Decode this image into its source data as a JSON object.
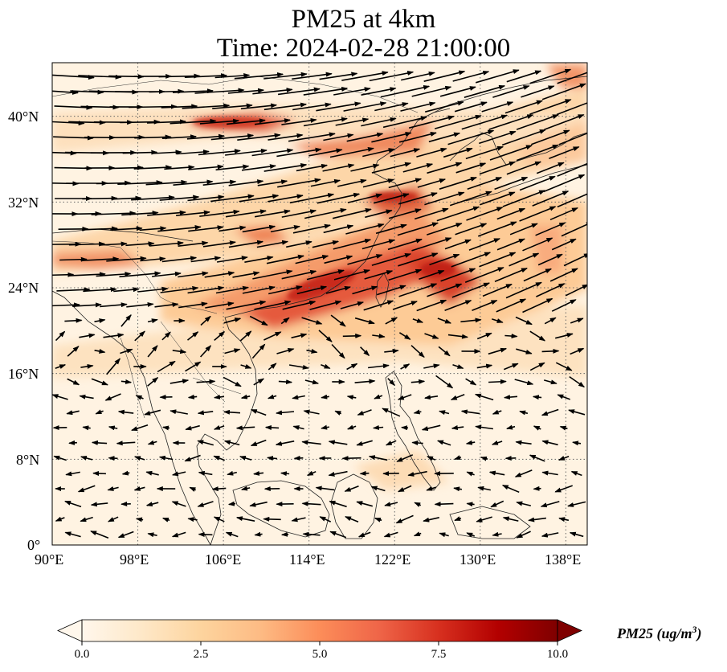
{
  "title": {
    "line1": "PM25 at 4km",
    "line2": "Time: 2024-02-28 21:00:00"
  },
  "map": {
    "region": "East and Southeast Asia",
    "lon_range": [
      90,
      140
    ],
    "lat_range": [
      0,
      45
    ],
    "x_ticks": [
      "90°E",
      "98°E",
      "106°E",
      "114°E",
      "122°E",
      "130°E",
      "138°E"
    ],
    "y_ticks": [
      "0°",
      "8°N",
      "16°N",
      "24°N",
      "32°N",
      "40°N"
    ],
    "grid": "dotted",
    "wind_vectors": "shown"
  },
  "colorbar": {
    "label_main": "PM25 (ug/m",
    "label_sup": "3",
    "label_end": ")",
    "ticks": [
      "0.0",
      "2.5",
      "5.0",
      "7.5",
      "10.0"
    ],
    "range": [
      0,
      10
    ],
    "colormap": [
      "#fff7ec",
      "#fee8c8",
      "#fdd49e",
      "#fdbb84",
      "#fc8d59",
      "#ef6548",
      "#d7301f",
      "#b30000",
      "#7f0000"
    ],
    "extend": "both"
  }
}
